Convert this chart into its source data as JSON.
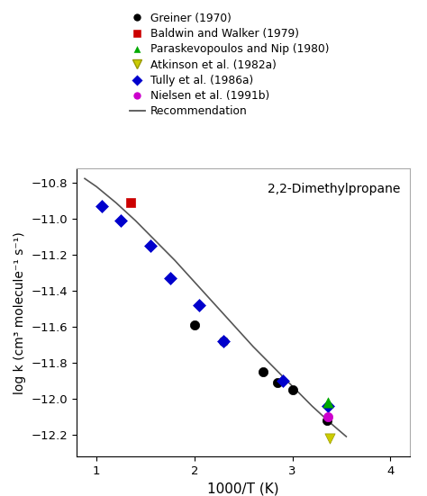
{
  "title": "2,2-Dimethylpropane",
  "xlabel": "1000/T (K)",
  "ylabel": "log k (cm³ molecule⁻¹ s⁻¹)",
  "xlim": [
    0.8,
    4.2
  ],
  "ylim": [
    -12.32,
    -10.72
  ],
  "yticks": [
    -10.8,
    -11.0,
    -11.2,
    -11.4,
    -11.6,
    -11.8,
    -12.0,
    -12.2
  ],
  "xticks": [
    1,
    2,
    3,
    4
  ],
  "greiner_x": [
    2.0,
    2.3,
    2.7,
    2.85,
    3.0,
    3.35
  ],
  "greiner_y": [
    -11.59,
    -11.68,
    -11.85,
    -11.91,
    -11.95,
    -12.12
  ],
  "baldwin_x": [
    1.35
  ],
  "baldwin_y": [
    -10.91
  ],
  "paraskevopoulos_x": [
    3.36
  ],
  "paraskevopoulos_y": [
    -12.02
  ],
  "atkinson_x": [
    3.38
  ],
  "atkinson_y": [
    -12.22
  ],
  "tully_x": [
    1.05,
    1.25,
    1.55,
    1.75,
    2.05,
    2.3,
    2.9,
    3.36
  ],
  "tully_y": [
    -10.93,
    -11.01,
    -11.15,
    -11.33,
    -11.48,
    -11.68,
    -11.9,
    -12.04
  ],
  "nielsen_x": [
    3.36
  ],
  "nielsen_y": [
    -12.1
  ],
  "rec_x_fine": [
    0.88,
    1.0,
    1.2,
    1.4,
    1.6,
    1.8,
    2.0,
    2.2,
    2.4,
    2.6,
    2.8,
    3.0,
    3.2,
    3.4,
    3.55
  ],
  "rec_y_fine": [
    -10.775,
    -10.82,
    -10.91,
    -11.01,
    -11.12,
    -11.23,
    -11.35,
    -11.47,
    -11.59,
    -11.71,
    -11.82,
    -11.93,
    -12.04,
    -12.14,
    -12.21
  ],
  "background_color": "#ffffff",
  "plot_bg_color": "#ffffff",
  "greiner_color": "#000000",
  "baldwin_color": "#cc0000",
  "paraskevopoulos_color": "#00aa00",
  "atkinson_color": "#cccc00",
  "tully_color": "#0000cc",
  "nielsen_color": "#cc00cc",
  "rec_color": "#555555",
  "legend_labels": [
    "Greiner (1970)",
    "Baldwin and Walker (1979)",
    "Paraskevopoulos and Nip (1980)",
    "Atkinson et al. (1982a)",
    "Tully et al. (1986a)",
    "Nielsen et al. (1991b)",
    "Recommendation"
  ],
  "figsize": [
    4.74,
    5.51
  ],
  "dpi": 100
}
